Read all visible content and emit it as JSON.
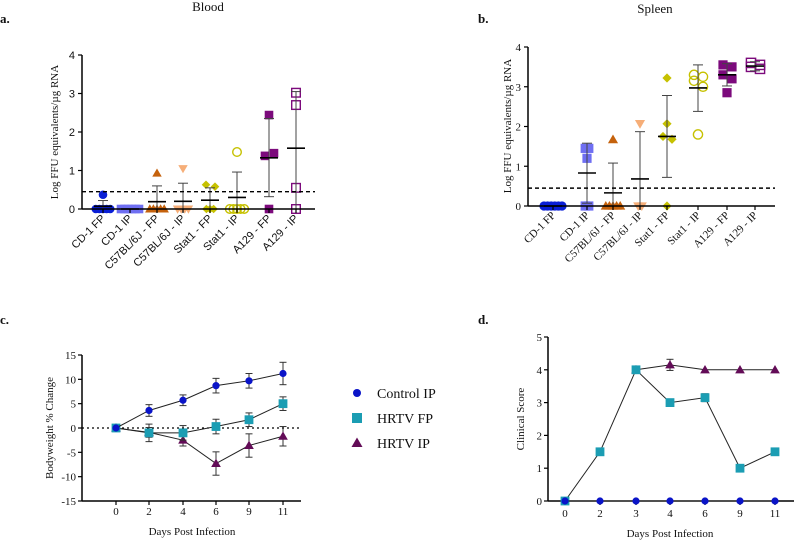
{
  "chart_data": [
    {
      "panel": "a.",
      "type": "scatter",
      "title": "Blood",
      "ylabel": "Log FFU equivalents/µg RNA",
      "xlabel": "",
      "ylim": [
        0,
        4
      ],
      "yticks": [
        0,
        1,
        2,
        3,
        4
      ],
      "detection_limit": 0.45,
      "categories": [
        "CD-1 FP",
        "CD-1 IP",
        "C57BL/6J - FP",
        "C57BL/6J - IP",
        "Stat1 - FP",
        "Stat1 - IP",
        "A129 - FP",
        "A129 - IP"
      ],
      "groups": [
        {
          "color": "#0a1fd6",
          "marker": "circle",
          "filled": true,
          "points": [
            0.37,
            0,
            0,
            0,
            0,
            0
          ],
          "mean": 0.07,
          "sd_low": 0,
          "sd_high": 0.22
        },
        {
          "color": "#6f6ff2",
          "marker": "square",
          "filled": true,
          "points": [
            0,
            0,
            0,
            0,
            0,
            0
          ],
          "mean": 0,
          "sd_low": 0,
          "sd_high": 0
        },
        {
          "color": "#c5620c",
          "marker": "triangle-up",
          "filled": true,
          "points": [
            0.93,
            0,
            0,
            0,
            0,
            0
          ],
          "mean": 0.19,
          "sd_low": 0,
          "sd_high": 0.6
        },
        {
          "color": "#f6ae78",
          "marker": "triangle-down",
          "filled": true,
          "points": [
            1.05,
            0,
            0,
            0,
            0
          ],
          "mean": 0.2,
          "sd_low": 0,
          "sd_high": 0.67
        },
        {
          "color": "#c6c100",
          "marker": "diamond",
          "filled": true,
          "points": [
            0.63,
            0.58,
            0,
            0,
            0
          ],
          "mean": 0.23,
          "sd_low": 0,
          "sd_high": 0.55
        },
        {
          "color": "#c6c100",
          "marker": "circle",
          "filled": false,
          "points": [
            1.48,
            0,
            0,
            0,
            0,
            0
          ],
          "mean": 0.3,
          "sd_low": 0,
          "sd_high": 0.96
        },
        {
          "color": "#7c0a7c",
          "marker": "square",
          "filled": true,
          "points": [
            2.44,
            1.45,
            1.38,
            0
          ],
          "mean": 1.33,
          "sd_low": 0.32,
          "sd_high": 2.35
        },
        {
          "color": "#7c0a7c",
          "marker": "square",
          "filled": false,
          "points": [
            3.02,
            2.7,
            0.55,
            0
          ],
          "mean": 1.58,
          "sd_low": 0,
          "sd_high": 3.05
        }
      ]
    },
    {
      "panel": "b.",
      "type": "scatter",
      "title": "Spleen",
      "ylabel": "Log FFU equivalents/µg RNA",
      "xlabel": "",
      "ylim": [
        0,
        4
      ],
      "yticks": [
        0,
        1,
        2,
        3,
        4
      ],
      "detection_limit": 0.45,
      "categories": [
        "CD-1 FP",
        "CD-1 IP",
        "C57BL/6J - FP",
        "C57BL/6J - IP",
        "Stat1 - FP",
        "Stat1 - IP",
        "A129 - FP",
        "A129 - IP"
      ],
      "groups": [
        {
          "color": "#0a1fd6",
          "marker": "circle",
          "filled": true,
          "points": [
            0,
            0,
            0,
            0,
            0,
            0
          ],
          "mean": 0,
          "sd_low": 0,
          "sd_high": 0
        },
        {
          "color": "#6f6ff2",
          "marker": "square",
          "filled": true,
          "points": [
            1.45,
            1.45,
            1.2,
            0,
            0
          ],
          "mean": 0.83,
          "sd_low": 0.07,
          "sd_high": 1.58
        },
        {
          "color": "#c5620c",
          "marker": "triangle-up",
          "filled": true,
          "points": [
            1.67,
            0,
            0,
            0,
            0,
            0
          ],
          "mean": 0.33,
          "sd_low": 0,
          "sd_high": 1.08
        },
        {
          "color": "#f6ae78",
          "marker": "triangle-down",
          "filled": true,
          "points": [
            2.07,
            0,
            0
          ],
          "mean": 0.68,
          "sd_low": 0,
          "sd_high": 1.87
        },
        {
          "color": "#c6c100",
          "marker": "diamond",
          "filled": true,
          "points": [
            3.22,
            2.07,
            1.75,
            1.68,
            0
          ],
          "mean": 1.75,
          "sd_low": 0.72,
          "sd_high": 2.78
        },
        {
          "color": "#c6c100",
          "marker": "circle",
          "filled": false,
          "points": [
            3.3,
            3.25,
            3.15,
            3.0,
            1.8
          ],
          "mean": 2.97,
          "sd_low": 2.38,
          "sd_high": 3.55
        },
        {
          "color": "#7c0a7c",
          "marker": "square",
          "filled": true,
          "points": [
            3.55,
            3.5,
            3.3,
            3.2,
            2.85
          ],
          "mean": 3.3,
          "sd_low": 3.02,
          "sd_high": 3.58
        },
        {
          "color": "#7c0a7c",
          "marker": "square",
          "filled": false,
          "points": [
            3.6,
            3.55,
            3.5,
            3.45
          ],
          "mean": 3.52,
          "sd_low": 3.4,
          "sd_high": 3.63
        }
      ]
    },
    {
      "panel": "c.",
      "type": "line",
      "xlabel": "Days Post Infection",
      "ylabel": "Bodyweight % Change",
      "ylim": [
        -15,
        15
      ],
      "yticks": [
        -15,
        -10,
        -5,
        0,
        5,
        10,
        15
      ],
      "x": [
        0,
        2,
        4,
        6,
        9,
        11
      ],
      "reference_line": 0,
      "legend_position": "right",
      "series": [
        {
          "name": "Control IP",
          "color": "#0a14c8",
          "marker": "circle",
          "values": [
            0,
            3.6,
            5.7,
            8.7,
            9.7,
            11.2
          ],
          "error": [
            0,
            1.2,
            1.1,
            1.5,
            1.5,
            2.3
          ]
        },
        {
          "name": "HRTV FP",
          "color": "#1b9db3",
          "marker": "square",
          "values": [
            0,
            -1.0,
            -1.0,
            0.3,
            1.7,
            5.0
          ],
          "error": [
            0,
            1.8,
            1.5,
            1.5,
            1.4,
            1.4
          ]
        },
        {
          "name": "HRTV IP",
          "color": "#630c57",
          "marker": "triangle",
          "values": [
            0,
            -0.9,
            -2.5,
            -7.3,
            -3.6,
            -1.7
          ],
          "error": [
            0,
            1.0,
            1.2,
            2.4,
            2.4,
            2.0
          ]
        }
      ]
    },
    {
      "panel": "d.",
      "type": "line",
      "xlabel": "Days Post Infection",
      "ylabel": "Clinical Score",
      "ylim": [
        0,
        5
      ],
      "yticks": [
        0,
        1,
        2,
        3,
        4,
        5
      ],
      "x": [
        0,
        2,
        3,
        4,
        6,
        9,
        11
      ],
      "series": [
        {
          "color": "#0a14c8",
          "marker": "circle",
          "values": [
            0,
            0,
            0,
            0,
            0,
            0,
            0
          ],
          "error": [
            0,
            0,
            0,
            0,
            0,
            0,
            0
          ]
        },
        {
          "color": "#1b9db3",
          "marker": "square",
          "values": [
            0,
            1.5,
            4,
            3,
            3.15,
            1,
            1.5
          ],
          "error": [
            0,
            0,
            0,
            0,
            0.12,
            0,
            0
          ]
        },
        {
          "color": "#630c57",
          "marker": "triangle",
          "values": [
            null,
            null,
            4,
            4.15,
            4,
            4,
            4
          ],
          "error": [
            0,
            0,
            0,
            0.17,
            0,
            0,
            0
          ]
        }
      ]
    }
  ]
}
